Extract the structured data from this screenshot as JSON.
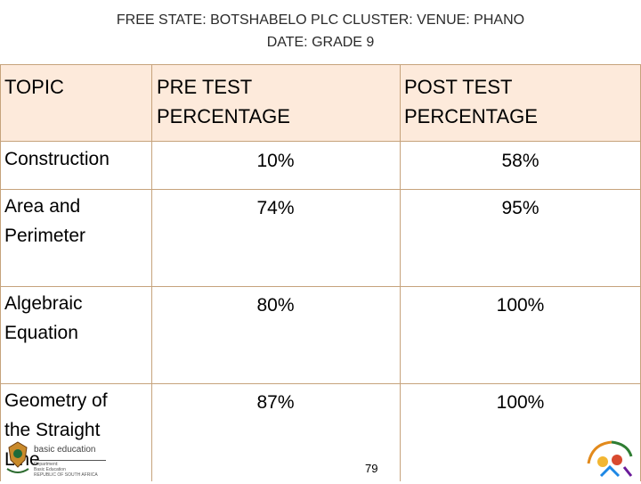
{
  "header": {
    "line1": "FREE STATE: BOTSHABELO PLC CLUSTER:  VENUE: PHANO",
    "line2": "DATE: GRADE 9"
  },
  "table": {
    "columns": [
      {
        "label_lines": [
          "TOPIC"
        ]
      },
      {
        "label_lines": [
          "PRE TEST",
          "PERCENTAGE"
        ]
      },
      {
        "label_lines": [
          "POST TEST",
          "PERCENTAGE"
        ]
      }
    ],
    "rows": [
      {
        "topic_lines": [
          "Construction"
        ],
        "pre": "10%",
        "post": "58%"
      },
      {
        "topic_lines": [
          "Area and",
          "Perimeter"
        ],
        "pre": "74%",
        "post": "95%"
      },
      {
        "topic_lines": [
          "Algebraic",
          "Equation"
        ],
        "pre": "80%",
        "post": "100%"
      },
      {
        "topic_lines": [
          "Geometry of",
          "the Straight",
          "Line"
        ],
        "pre": "87%",
        "post": "100%"
      }
    ]
  },
  "footer": {
    "page_number": "79",
    "logo_title": "basic education",
    "logo_subtitle_lines": [
      "Department:",
      "Basic Education",
      "REPUBLIC OF SOUTH AFRICA"
    ]
  }
}
